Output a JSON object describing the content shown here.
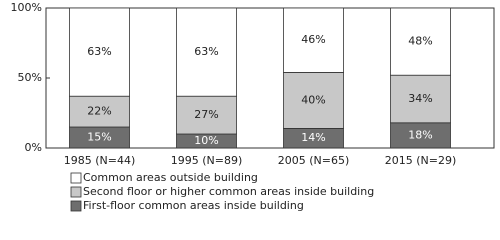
{
  "chart_data": {
    "type": "stacked-bar",
    "categories": [
      "1985 (N=44)",
      "1995 (N=89)",
      "2005 (N=65)",
      "2015 (N=29)"
    ],
    "series": [
      {
        "name": "First-floor common areas inside building",
        "color": "#6e6e6e",
        "values": [
          15,
          10,
          14,
          18
        ],
        "value_labels": [
          "15%",
          "10%",
          "14%",
          "18%"
        ]
      },
      {
        "name": "Second floor or higher common areas inside building",
        "color": "#c8c8c8",
        "values": [
          22,
          27,
          40,
          34
        ],
        "value_labels": [
          "22%",
          "27%",
          "40%",
          "34%"
        ]
      },
      {
        "name": "Common areas outside building",
        "color": "#ffffff",
        "values": [
          63,
          63,
          46,
          48
        ],
        "value_labels": [
          "63%",
          "63%",
          "46%",
          "48%"
        ]
      }
    ],
    "ylim": [
      0,
      100
    ],
    "yticks": [
      {
        "value": 0,
        "label": "0%"
      },
      {
        "value": 50,
        "label": "50%"
      },
      {
        "value": 100,
        "label": "100%"
      }
    ],
    "legend": "bottom-left"
  }
}
